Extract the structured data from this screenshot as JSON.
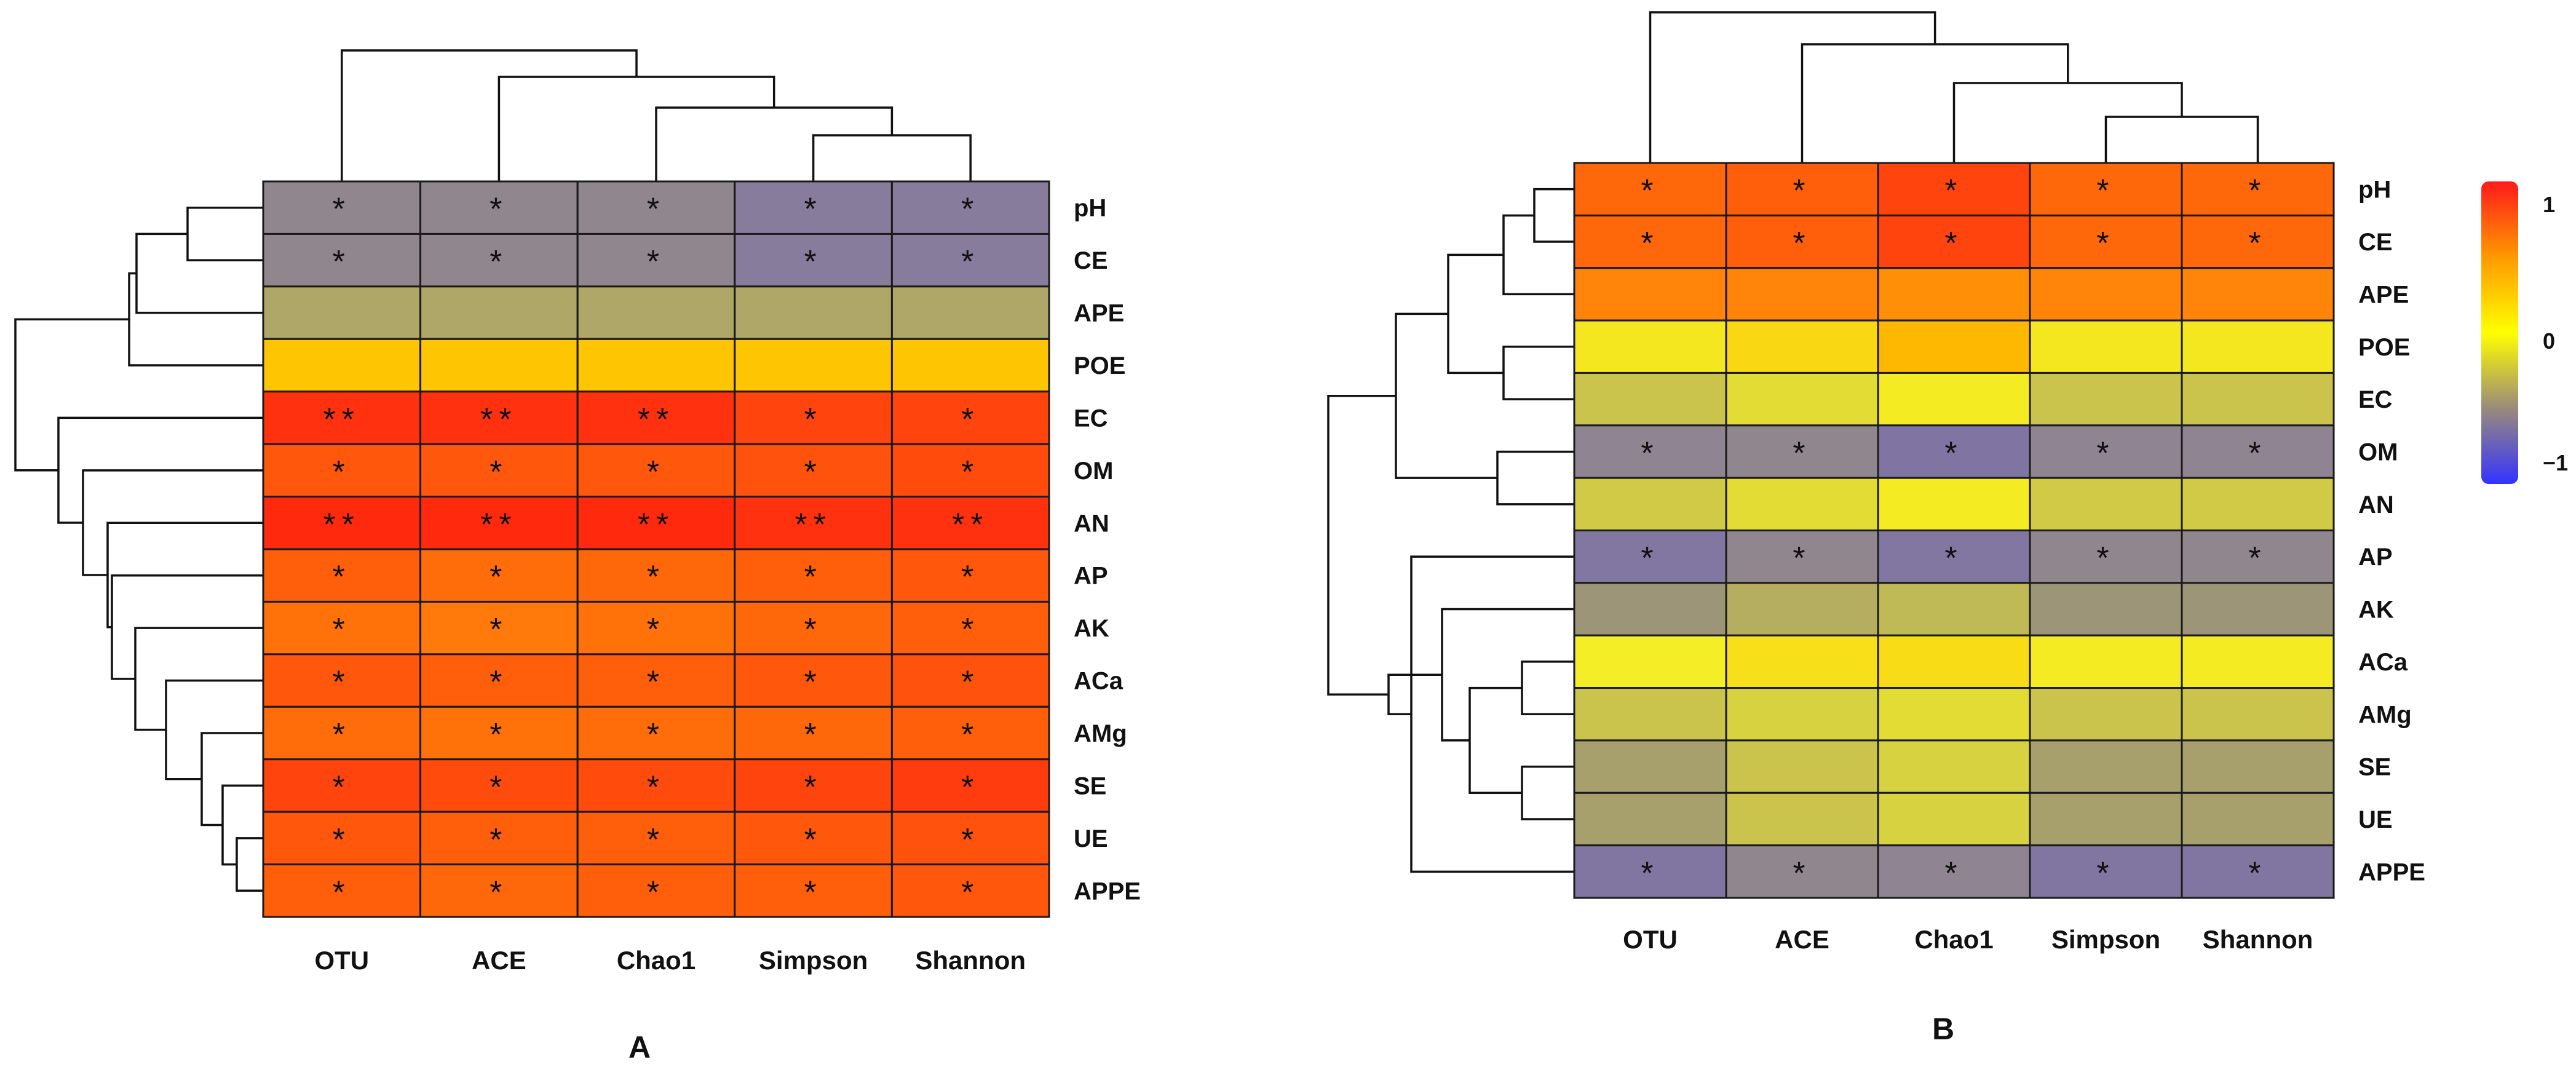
{
  "chart_data": [
    {
      "type": "heatmap",
      "panel_label": "A",
      "columns": [
        "OTU",
        "ACE",
        "Chao1",
        "Simpson",
        "Shannon"
      ],
      "rows": [
        "pH",
        "CE",
        "APE",
        "POE",
        "EC",
        "OM",
        "AN",
        "AP",
        "AK",
        "ACa",
        "AMg",
        "SE",
        "UE",
        "APPE"
      ],
      "values": [
        [
          -0.45,
          -0.45,
          -0.45,
          -0.6,
          -0.6
        ],
        [
          -0.45,
          -0.45,
          -0.45,
          -0.6,
          -0.6
        ],
        [
          -0.2,
          -0.2,
          -0.2,
          -0.2,
          -0.2
        ],
        [
          0.28,
          0.28,
          0.28,
          0.28,
          0.28
        ],
        [
          0.92,
          0.92,
          0.92,
          0.85,
          0.85
        ],
        [
          0.78,
          0.78,
          0.78,
          0.8,
          0.82
        ],
        [
          0.95,
          0.95,
          0.95,
          0.92,
          0.92
        ],
        [
          0.75,
          0.7,
          0.72,
          0.75,
          0.78
        ],
        [
          0.68,
          0.65,
          0.68,
          0.72,
          0.75
        ],
        [
          0.78,
          0.75,
          0.75,
          0.78,
          0.8
        ],
        [
          0.7,
          0.68,
          0.7,
          0.72,
          0.75
        ],
        [
          0.85,
          0.82,
          0.82,
          0.85,
          0.88
        ],
        [
          0.78,
          0.75,
          0.75,
          0.78,
          0.8
        ],
        [
          0.75,
          0.72,
          0.75,
          0.75,
          0.78
        ]
      ],
      "significance": [
        [
          "*",
          "*",
          "*",
          "*",
          "*"
        ],
        [
          "*",
          "*",
          "*",
          "*",
          "*"
        ],
        [
          "",
          "",
          "",
          "",
          ""
        ],
        [
          "",
          "",
          "",
          "",
          ""
        ],
        [
          "**",
          "**",
          "**",
          "*",
          "*"
        ],
        [
          "*",
          "*",
          "*",
          "*",
          "*"
        ],
        [
          "**",
          "**",
          "**",
          "**",
          "**"
        ],
        [
          "*",
          "*",
          "*",
          "*",
          "*"
        ],
        [
          "*",
          "*",
          "*",
          "*",
          "*"
        ],
        [
          "*",
          "*",
          "*",
          "*",
          "*"
        ],
        [
          "*",
          "*",
          "*",
          "*",
          "*"
        ],
        [
          "*",
          "*",
          "*",
          "*",
          "*"
        ],
        [
          "*",
          "*",
          "*",
          "*",
          "*"
        ],
        [
          "*",
          "*",
          "*",
          "*",
          "*"
        ]
      ],
      "value_range": [
        -1,
        1
      ]
    },
    {
      "type": "heatmap",
      "panel_label": "B",
      "columns": [
        "OTU",
        "ACE",
        "Chao1",
        "Simpson",
        "Shannon"
      ],
      "rows": [
        "pH",
        "CE",
        "APE",
        "POE",
        "EC",
        "OM",
        "AN",
        "AP",
        "AK",
        "ACa",
        "AMg",
        "SE",
        "UE",
        "APPE"
      ],
      "values": [
        [
          0.72,
          0.75,
          0.85,
          0.72,
          0.72
        ],
        [
          0.72,
          0.75,
          0.85,
          0.72,
          0.72
        ],
        [
          0.6,
          0.6,
          0.55,
          0.6,
          0.6
        ],
        [
          0.05,
          0.15,
          0.35,
          0.05,
          0.05
        ],
        [
          -0.12,
          -0.05,
          0.02,
          -0.12,
          -0.12
        ],
        [
          -0.48,
          -0.45,
          -0.72,
          -0.48,
          -0.48
        ],
        [
          -0.1,
          -0.05,
          0.02,
          -0.1,
          -0.1
        ],
        [
          -0.68,
          -0.45,
          -0.68,
          -0.45,
          -0.45
        ],
        [
          -0.25,
          -0.18,
          -0.15,
          -0.25,
          -0.25
        ],
        [
          0.0,
          0.1,
          0.12,
          0.02,
          0.02
        ],
        [
          -0.12,
          -0.08,
          -0.05,
          -0.12,
          -0.12
        ],
        [
          -0.22,
          -0.12,
          -0.08,
          -0.22,
          -0.22
        ],
        [
          -0.22,
          -0.12,
          -0.08,
          -0.22,
          -0.22
        ],
        [
          -0.7,
          -0.45,
          -0.48,
          -0.7,
          -0.7
        ]
      ],
      "significance": [
        [
          "*",
          "*",
          "*",
          "*",
          "*"
        ],
        [
          "*",
          "*",
          "*",
          "*",
          "*"
        ],
        [
          "",
          "",
          "",
          "",
          ""
        ],
        [
          "",
          "",
          "",
          "",
          ""
        ],
        [
          "",
          "",
          "",
          "",
          ""
        ],
        [
          "*",
          "*",
          "*",
          "*",
          "*"
        ],
        [
          "",
          "",
          "",
          "",
          ""
        ],
        [
          "*",
          "*",
          "*",
          "*",
          "*"
        ],
        [
          "",
          "",
          "",
          "",
          ""
        ],
        [
          "",
          "",
          "",
          "",
          ""
        ],
        [
          "",
          "",
          "",
          "",
          ""
        ],
        [
          "",
          "",
          "",
          "",
          ""
        ],
        [
          "",
          "",
          "",
          "",
          ""
        ],
        [
          "*",
          "*",
          "*",
          "*",
          "*"
        ]
      ],
      "value_range": [
        -1,
        1
      ],
      "colorbar": {
        "ticks": [
          "1",
          "0",
          "−1"
        ],
        "colors": [
          "#ff1a1a",
          "#ff9900",
          "#ffff00",
          "#9a8a7a",
          "#3333ff"
        ]
      }
    }
  ]
}
